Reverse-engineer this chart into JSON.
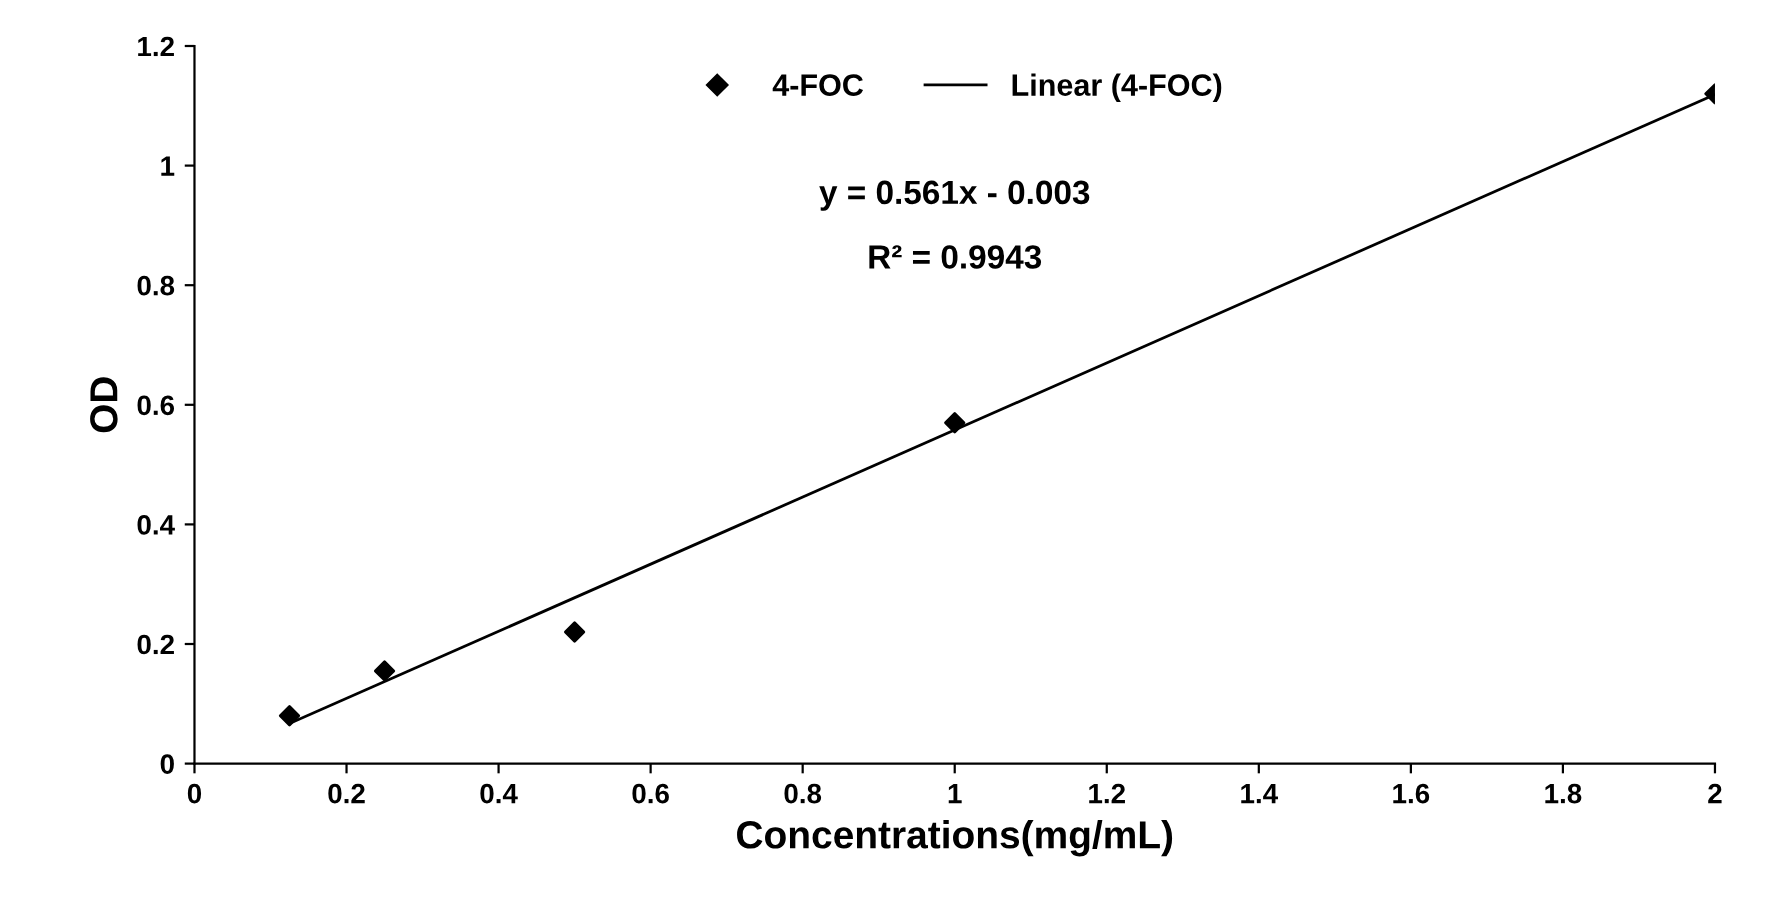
{
  "chart_data": {
    "type": "scatter",
    "xlabel": "Concentrations(mg/mL)",
    "ylabel": "OD",
    "x": [
      0.125,
      0.25,
      0.5,
      1,
      2
    ],
    "series": [
      {
        "name": "4-FOC",
        "color": "#000000",
        "marker": "diamond",
        "values": [
          0.08,
          0.155,
          0.22,
          0.57,
          1.12
        ]
      },
      {
        "name": "Linear (4-FOC)",
        "type": "line",
        "color": "#000000",
        "line_style": "solid",
        "x": [
          0.125,
          2
        ],
        "values": [
          0.067,
          1.119
        ]
      }
    ],
    "annotations": [
      "y = 0.561x - 0.003",
      "R² = 0.9943"
    ],
    "xlim": [
      0,
      2
    ],
    "xticks": [
      0,
      0.2,
      0.4,
      0.6,
      0.8,
      1,
      1.2,
      1.4,
      1.6,
      1.8,
      2
    ],
    "ylim": [
      0,
      1.2
    ],
    "yticks": [
      0,
      0.2,
      0.4,
      0.6,
      0.8,
      1,
      1.2
    ],
    "grid": false,
    "legend": "top"
  }
}
